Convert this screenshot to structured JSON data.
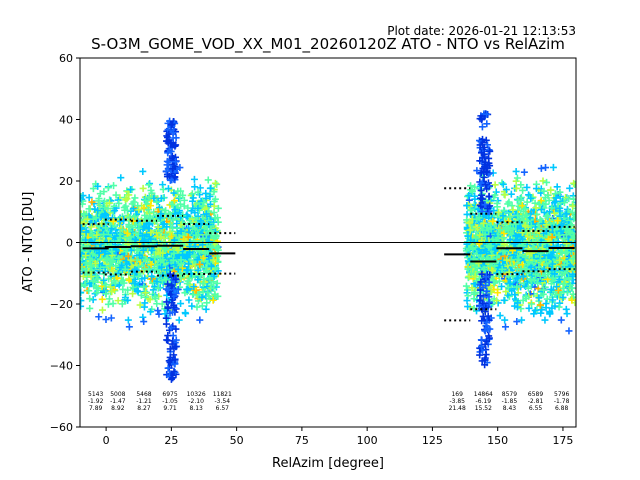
{
  "chart_data": {
    "type": "scatter",
    "title": "S-O3M_GOME_VOD_XX_M01_20260120Z ATO - NTO vs RelAzim",
    "subtitle": "Plot date: 2026-01-21 12:13:53",
    "xlabel": "RelAzim [degree]",
    "ylabel": "ATO - NTO [DU]",
    "xlim": [
      -10,
      180
    ],
    "ylim": [
      -60,
      60
    ],
    "xticks": [
      "0",
      "25",
      "50",
      "75",
      "100",
      "125",
      "150",
      "175"
    ],
    "yticks": [
      "−60",
      "−40",
      "−20",
      "0",
      "20",
      "40",
      "60"
    ],
    "grid": false,
    "marker": "+",
    "palette": [
      "#00c8ff",
      "#52ffa8",
      "#b8ff47",
      "#ffe600",
      "#ffb000",
      "#1464ff",
      "#0032e0"
    ],
    "clusters": [
      {
        "xmin": -10,
        "xmax": 43,
        "yhigh": 20,
        "ylow": -24
      },
      {
        "xmin": 138,
        "xmax": 180,
        "yhigh": 20,
        "ylow": -24
      }
    ],
    "bins": [
      {
        "x": -4,
        "count": "5143",
        "mean": "-1.92",
        "std": "7.89"
      },
      {
        "x": 4.5,
        "count": "5008",
        "mean": "-1.47",
        "std": "8.92"
      },
      {
        "x": 14.5,
        "count": "5468",
        "mean": "-1.21",
        "std": "8.27"
      },
      {
        "x": 24.5,
        "count": "6975",
        "mean": "-1.05",
        "std": "9.71"
      },
      {
        "x": 34.5,
        "count": "10326",
        "mean": "-2.10",
        "std": "8.13"
      },
      {
        "x": 44.5,
        "count": "11821",
        "mean": "-3.54",
        "std": "6.57"
      },
      {
        "x": 134.5,
        "count": "169",
        "mean": "-3.85",
        "std": "21.48"
      },
      {
        "x": 144.5,
        "count": "14864",
        "mean": "-6.19",
        "std": "15.52"
      },
      {
        "x": 154.5,
        "count": "8579",
        "mean": "-1.85",
        "std": "8.43"
      },
      {
        "x": 164.5,
        "count": "6589",
        "mean": "-2.81",
        "std": "6.55"
      },
      {
        "x": 174.5,
        "count": "5796",
        "mean": "-1.78",
        "std": "6.88"
      }
    ],
    "binwidth": 10
  }
}
